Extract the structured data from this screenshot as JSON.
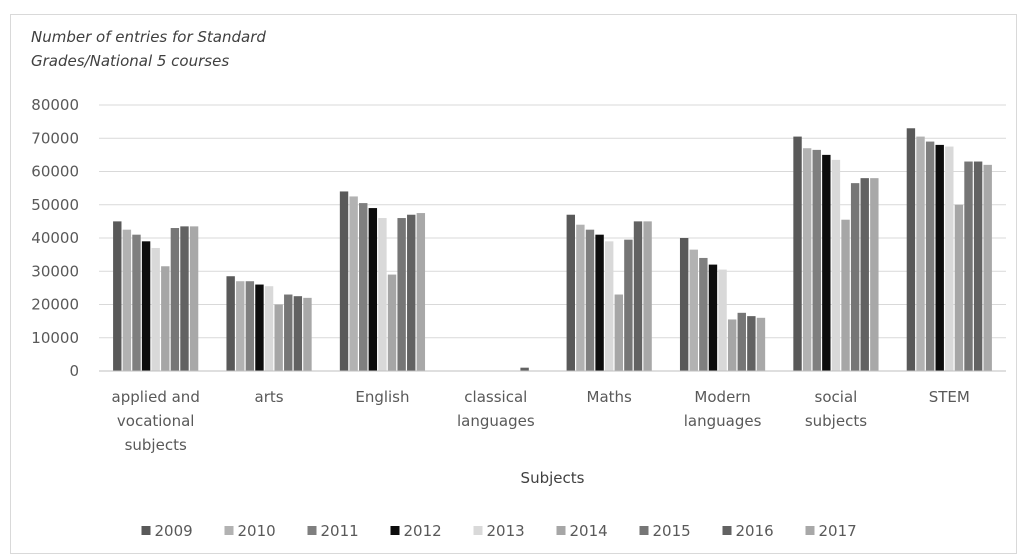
{
  "chart_data": {
    "type": "bar",
    "title_lines": [
      "Number of entries for Standard",
      "Grades/National 5 courses"
    ],
    "xlabel": "Subjects",
    "ylabel": "",
    "ylim": [
      0,
      80000
    ],
    "yticks": [
      0,
      10000,
      20000,
      30000,
      40000,
      50000,
      60000,
      70000,
      80000
    ],
    "grid": true,
    "legend_position": "bottom",
    "categories": [
      [
        "applied and",
        "vocational",
        "subjects"
      ],
      [
        "arts"
      ],
      [
        "English"
      ],
      [
        "classical",
        "languages"
      ],
      [
        "Maths"
      ],
      [
        "Modern",
        "languages"
      ],
      [
        "social",
        "subjects"
      ],
      [
        "STEM"
      ]
    ],
    "series": [
      {
        "name": "2009",
        "color": "#595959",
        "values": [
          45000,
          28500,
          54000,
          0,
          47000,
          40000,
          70500,
          73000
        ]
      },
      {
        "name": "2010",
        "color": "#b2b2b2",
        "values": [
          42500,
          27000,
          52500,
          0,
          44000,
          36500,
          67000,
          70500
        ]
      },
      {
        "name": "2011",
        "color": "#7f7f7f",
        "values": [
          41000,
          27000,
          50500,
          0,
          42500,
          34000,
          66500,
          69000
        ]
      },
      {
        "name": "2012",
        "color": "#0d0d0d",
        "values": [
          39000,
          26000,
          49000,
          0,
          41000,
          32000,
          65000,
          68000
        ]
      },
      {
        "name": "2013",
        "color": "#d9d9d9",
        "values": [
          37000,
          25500,
          46000,
          0,
          39000,
          30500,
          63500,
          67500
        ]
      },
      {
        "name": "2014",
        "color": "#a6a6a6",
        "values": [
          31500,
          20000,
          29000,
          0,
          23000,
          15500,
          45500,
          50000
        ]
      },
      {
        "name": "2015",
        "color": "#767676",
        "values": [
          43000,
          23000,
          46000,
          0,
          39500,
          17500,
          56500,
          63000
        ]
      },
      {
        "name": "2016",
        "color": "#626262",
        "values": [
          43500,
          22500,
          47000,
          1000,
          45000,
          16500,
          58000,
          63000
        ]
      },
      {
        "name": "2017",
        "color": "#a8a8a8",
        "values": [
          43500,
          22000,
          47500,
          0,
          45000,
          16000,
          58000,
          62000
        ]
      }
    ]
  }
}
